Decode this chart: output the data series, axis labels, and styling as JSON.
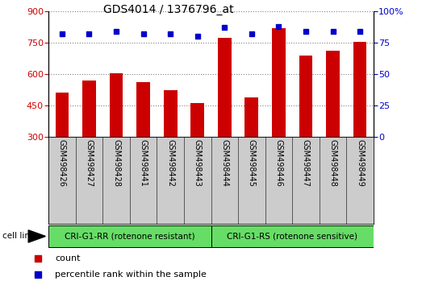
{
  "title": "GDS4014 / 1376796_at",
  "samples": [
    "GSM498426",
    "GSM498427",
    "GSM498428",
    "GSM498441",
    "GSM498442",
    "GSM498443",
    "GSM498444",
    "GSM498445",
    "GSM498446",
    "GSM498447",
    "GSM498448",
    "GSM498449"
  ],
  "counts": [
    510,
    570,
    603,
    560,
    525,
    460,
    775,
    490,
    820,
    690,
    710,
    755
  ],
  "percentile": [
    82,
    82,
    84,
    82,
    82,
    80,
    87,
    82,
    88,
    84,
    84,
    84
  ],
  "group1_label": "CRI-G1-RR (rotenone resistant)",
  "group2_label": "CRI-G1-RS (rotenone sensitive)",
  "group1_count": 6,
  "group2_count": 6,
  "ylim_left": [
    300,
    900
  ],
  "ylim_right": [
    0,
    100
  ],
  "yticks_left": [
    300,
    450,
    600,
    750,
    900
  ],
  "yticks_right": [
    0,
    25,
    50,
    75,
    100
  ],
  "bar_color": "#cc0000",
  "dot_color": "#0000cc",
  "group_color": "#66dd66",
  "bg_xticklabels": "#cccccc",
  "cell_line_label": "cell line",
  "legend_count": "count",
  "legend_percentile": "percentile rank within the sample",
  "gridline_color": "#000000",
  "gridline_alpha": 0.5,
  "title_fontsize": 10,
  "bar_width": 0.5,
  "tick_fontsize": 8,
  "label_fontsize": 8
}
